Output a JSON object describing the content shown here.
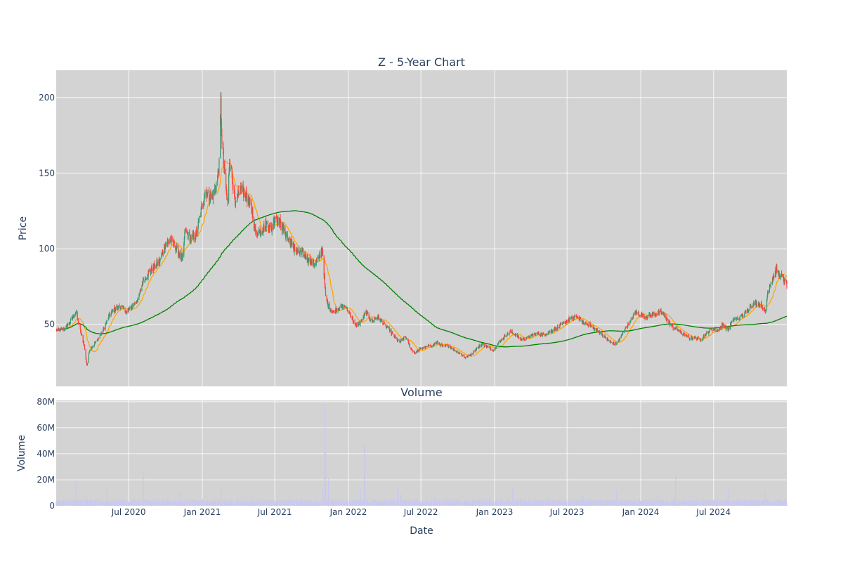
{
  "chart_data": [
    {
      "type": "candlestick",
      "title": "Z - 5-Year Chart",
      "ylabel": "Price",
      "ylim": [
        9,
        218
      ],
      "y_ticks": [
        50,
        100,
        150,
        200
      ],
      "x_range": [
        "2020-01-02",
        "2024-12-31"
      ],
      "grid": true,
      "colors": {
        "up": "#3d9970",
        "down": "#ff4136",
        "ma_short": "#ffa500",
        "ma_long": "#008000",
        "background": "#d3d3d3"
      },
      "price_close_anchors": [
        [
          "2020-01-02",
          46
        ],
        [
          "2020-01-20",
          47
        ],
        [
          "2020-02-05",
          51
        ],
        [
          "2020-02-13",
          55
        ],
        [
          "2020-02-20",
          58
        ],
        [
          "2020-02-26",
          52
        ],
        [
          "2020-03-05",
          43
        ],
        [
          "2020-03-12",
          36
        ],
        [
          "2020-03-16",
          27
        ],
        [
          "2020-03-19",
          23
        ],
        [
          "2020-03-25",
          33
        ],
        [
          "2020-04-03",
          36
        ],
        [
          "2020-04-15",
          40
        ],
        [
          "2020-04-28",
          46
        ],
        [
          "2020-05-12",
          55
        ],
        [
          "2020-05-26",
          60
        ],
        [
          "2020-06-10",
          62
        ],
        [
          "2020-06-26",
          58
        ],
        [
          "2020-07-10",
          62
        ],
        [
          "2020-07-24",
          66
        ],
        [
          "2020-08-06",
          79
        ],
        [
          "2020-08-20",
          84
        ],
        [
          "2020-09-03",
          88
        ],
        [
          "2020-09-17",
          92
        ],
        [
          "2020-10-01",
          103
        ],
        [
          "2020-10-15",
          106
        ],
        [
          "2020-10-29",
          100
        ],
        [
          "2020-11-12",
          92
        ],
        [
          "2020-11-19",
          112
        ],
        [
          "2020-12-03",
          106
        ],
        [
          "2020-12-17",
          110
        ],
        [
          "2020-12-29",
          125
        ],
        [
          "2021-01-08",
          138
        ],
        [
          "2021-01-20",
          134
        ],
        [
          "2021-01-29",
          136
        ],
        [
          "2021-02-05",
          143
        ],
        [
          "2021-02-12",
          155
        ],
        [
          "2021-02-16",
          196
        ],
        [
          "2021-02-19",
          168
        ],
        [
          "2021-02-26",
          148
        ],
        [
          "2021-03-05",
          130
        ],
        [
          "2021-03-10",
          158
        ],
        [
          "2021-03-16",
          150
        ],
        [
          "2021-03-24",
          128
        ],
        [
          "2021-04-07",
          140
        ],
        [
          "2021-04-21",
          135
        ],
        [
          "2021-05-05",
          126
        ],
        [
          "2021-05-14",
          110
        ],
        [
          "2021-05-28",
          112
        ],
        [
          "2021-06-11",
          116
        ],
        [
          "2021-06-22",
          113
        ],
        [
          "2021-07-02",
          122
        ],
        [
          "2021-07-14",
          117
        ],
        [
          "2021-07-28",
          110
        ],
        [
          "2021-08-11",
          103
        ],
        [
          "2021-08-25",
          98
        ],
        [
          "2021-09-08",
          97
        ],
        [
          "2021-09-22",
          93
        ],
        [
          "2021-10-06",
          90
        ],
        [
          "2021-10-20",
          94
        ],
        [
          "2021-10-28",
          100
        ],
        [
          "2021-11-05",
          68
        ],
        [
          "2021-11-12",
          62
        ],
        [
          "2021-11-24",
          58
        ],
        [
          "2021-12-08",
          61
        ],
        [
          "2021-12-22",
          62
        ],
        [
          "2022-01-05",
          57
        ],
        [
          "2022-01-19",
          49
        ],
        [
          "2022-02-02",
          52
        ],
        [
          "2022-02-14",
          58
        ],
        [
          "2022-02-28",
          52
        ],
        [
          "2022-03-14",
          55
        ],
        [
          "2022-03-28",
          51
        ],
        [
          "2022-04-11",
          47
        ],
        [
          "2022-04-25",
          42
        ],
        [
          "2022-05-09",
          38
        ],
        [
          "2022-05-23",
          42
        ],
        [
          "2022-06-06",
          34
        ],
        [
          "2022-06-16",
          31
        ],
        [
          "2022-06-30",
          34
        ],
        [
          "2022-07-14",
          35
        ],
        [
          "2022-07-28",
          36
        ],
        [
          "2022-08-11",
          38
        ],
        [
          "2022-08-25",
          35
        ],
        [
          "2022-09-08",
          36
        ],
        [
          "2022-09-22",
          33
        ],
        [
          "2022-10-06",
          31
        ],
        [
          "2022-10-20",
          28
        ],
        [
          "2022-11-03",
          30
        ],
        [
          "2022-11-17",
          34
        ],
        [
          "2022-12-01",
          37
        ],
        [
          "2022-12-15",
          35
        ],
        [
          "2022-12-29",
          33
        ],
        [
          "2023-01-12",
          38
        ],
        [
          "2023-01-26",
          42
        ],
        [
          "2023-02-09",
          45
        ],
        [
          "2023-02-23",
          43
        ],
        [
          "2023-03-09",
          40
        ],
        [
          "2023-03-23",
          41
        ],
        [
          "2023-04-06",
          43
        ],
        [
          "2023-04-20",
          44
        ],
        [
          "2023-05-04",
          43
        ],
        [
          "2023-05-18",
          45
        ],
        [
          "2023-06-01",
          47
        ],
        [
          "2023-06-15",
          49
        ],
        [
          "2023-06-29",
          52
        ],
        [
          "2023-07-13",
          54
        ],
        [
          "2023-07-27",
          55
        ],
        [
          "2023-08-10",
          51
        ],
        [
          "2023-08-24",
          50
        ],
        [
          "2023-09-07",
          47
        ],
        [
          "2023-09-21",
          45
        ],
        [
          "2023-10-05",
          41
        ],
        [
          "2023-10-19",
          38
        ],
        [
          "2023-10-31",
          37
        ],
        [
          "2023-11-09",
          40
        ],
        [
          "2023-11-23",
          47
        ],
        [
          "2023-12-07",
          52
        ],
        [
          "2023-12-18",
          58
        ],
        [
          "2023-12-29",
          57
        ],
        [
          "2024-01-11",
          55
        ],
        [
          "2024-01-25",
          56
        ],
        [
          "2024-02-08",
          57
        ],
        [
          "2024-02-22",
          58
        ],
        [
          "2024-03-07",
          53
        ],
        [
          "2024-03-21",
          48
        ],
        [
          "2024-04-04",
          46
        ],
        [
          "2024-04-18",
          43
        ],
        [
          "2024-05-02",
          41
        ],
        [
          "2024-05-16",
          41
        ],
        [
          "2024-05-30",
          40
        ],
        [
          "2024-06-13",
          44
        ],
        [
          "2024-06-27",
          47
        ],
        [
          "2024-07-11",
          46
        ],
        [
          "2024-07-25",
          50
        ],
        [
          "2024-08-05",
          46
        ],
        [
          "2024-08-19",
          53
        ],
        [
          "2024-09-03",
          54
        ],
        [
          "2024-09-17",
          57
        ],
        [
          "2024-09-30",
          62
        ],
        [
          "2024-10-14",
          64
        ],
        [
          "2024-10-28",
          63
        ],
        [
          "2024-11-07",
          58
        ],
        [
          "2024-11-14",
          73
        ],
        [
          "2024-11-25",
          80
        ],
        [
          "2024-12-05",
          86
        ],
        [
          "2024-12-16",
          82
        ],
        [
          "2024-12-31",
          76
        ]
      ]
    },
    {
      "type": "bar",
      "title": "Volume",
      "xlabel": "Date",
      "ylabel": "Volume",
      "ylim": [
        0,
        81000000
      ],
      "y_ticks": [
        0,
        20000000,
        40000000,
        60000000,
        80000000
      ],
      "y_tick_labels": [
        "0",
        "20M",
        "40M",
        "60M",
        "80M"
      ],
      "x_ticks": [
        "2020-07-01",
        "2021-01-01",
        "2021-07-01",
        "2022-01-01",
        "2022-07-01",
        "2023-01-01",
        "2023-07-01",
        "2024-01-01",
        "2024-07-01"
      ],
      "x_tick_labels": [
        "Jul 2020",
        "Jan 2021",
        "Jul 2021",
        "Jan 2022",
        "Jul 2022",
        "Jan 2023",
        "Jul 2023",
        "Jan 2024",
        "Jul 2024"
      ],
      "grid": true,
      "colors": {
        "bars": "#c8c8f0",
        "background": "#d3d3d3"
      },
      "volume_baseline": 3500000,
      "volume_spikes": [
        [
          "2020-02-20",
          19000000
        ],
        [
          "2020-03-16",
          9000000
        ],
        [
          "2020-05-08",
          12000000
        ],
        [
          "2020-08-07",
          26000000
        ],
        [
          "2020-11-06",
          10000000
        ],
        [
          "2021-02-17",
          14000000
        ],
        [
          "2021-05-06",
          7000000
        ],
        [
          "2021-08-06",
          8000000
        ],
        [
          "2021-10-29",
          13000000
        ],
        [
          "2021-11-03",
          78000000
        ],
        [
          "2021-11-05",
          42000000
        ],
        [
          "2021-11-12",
          21000000
        ],
        [
          "2022-01-31",
          12000000
        ],
        [
          "2022-02-10",
          47000000
        ],
        [
          "2022-02-11",
          22000000
        ],
        [
          "2022-05-06",
          13000000
        ],
        [
          "2022-05-12",
          9000000
        ],
        [
          "2022-08-05",
          8000000
        ],
        [
          "2022-11-08",
          7000000
        ],
        [
          "2023-02-15",
          13000000
        ],
        [
          "2023-05-09",
          6000000
        ],
        [
          "2023-08-09",
          9000000
        ],
        [
          "2023-11-02",
          12000000
        ],
        [
          "2024-02-14",
          10000000
        ],
        [
          "2024-03-28",
          23000000
        ],
        [
          "2024-05-03",
          9000000
        ],
        [
          "2024-08-07",
          13000000
        ],
        [
          "2024-11-07",
          11000000
        ]
      ]
    }
  ]
}
